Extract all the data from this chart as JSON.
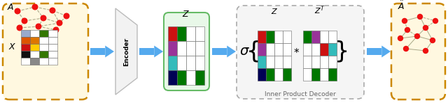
{
  "fig_width": 6.4,
  "fig_height": 1.48,
  "bg_color": "#ffffff",
  "panel1_bg": "#fff8e0",
  "panel1_border": "#cc8800",
  "panel2_bg": "#e8f8e8",
  "panel2_border": "#66bb66",
  "panel3_bg": "#f0f0f0",
  "panel3_border": "#aaaaaa",
  "panel4_bg": "#fff8e0",
  "panel4_border": "#cc8800",
  "arrow_color": "#55aaee",
  "graph_node_color": "#ee1111",
  "graph_edge_color": "#999977",
  "z_matrix_colors": [
    [
      "#cc1111",
      "#007700",
      "#ffffff",
      "#ffffff"
    ],
    [
      "#993399",
      "#ffffff",
      "#ffffff",
      "#ffffff"
    ],
    [
      "#33bbbb",
      "#ffffff",
      "#ffffff",
      "#ffffff"
    ],
    [
      "#000055",
      "#007700",
      "#ffffff",
      "#007700"
    ]
  ],
  "x_matrix_colors": [
    [
      "#99aacc",
      "#ffffff",
      "#337700",
      "#ffffff"
    ],
    [
      "#dd5500",
      "#dd7700",
      "#ffffff",
      "#ffffff"
    ],
    [
      "#cc1111",
      "#ffcc00",
      "#ffffff",
      "#ffffff"
    ],
    [
      "#111111",
      "#ffffff",
      "#337700",
      "#ffffff"
    ],
    [
      "#ffffff",
      "#888888",
      "#ffffff",
      "#ffffff"
    ]
  ],
  "zt_matrix_colors": [
    [
      "#007700",
      "#993399",
      "#ffffff",
      "#ffffff"
    ],
    [
      "#ffffff",
      "#ffffff",
      "#cc1111",
      "#33bbbb"
    ],
    [
      "#ffffff",
      "#ffffff",
      "#ffffff",
      "#ffffff"
    ],
    [
      "#ffffff",
      "#007700",
      "#ffffff",
      "#007700"
    ]
  ],
  "encoder_label": "Encoder",
  "inner_label": "Inner Product Decoder"
}
